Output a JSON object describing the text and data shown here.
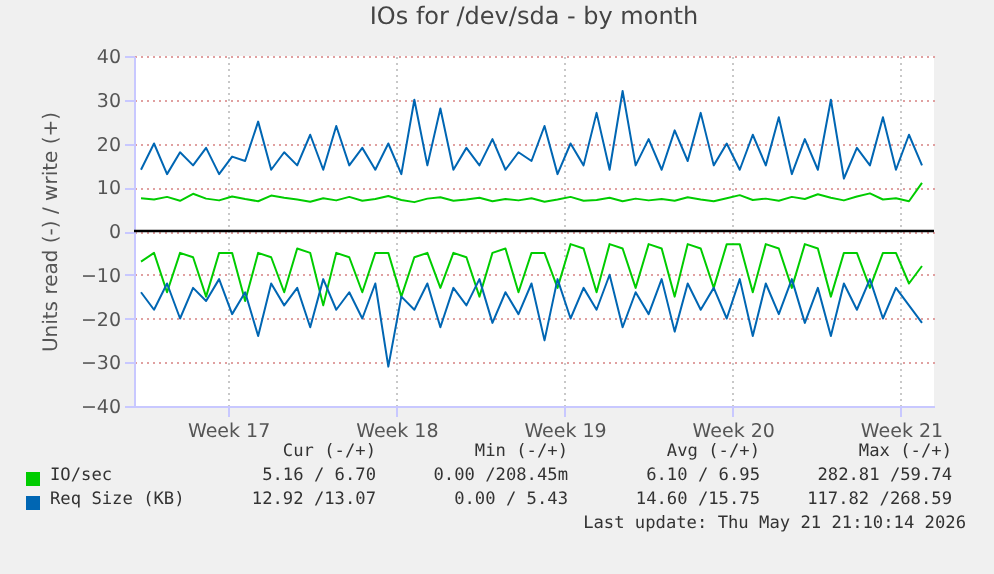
{
  "chart_data": {
    "type": "line",
    "title": "IOs for /dev/sda - by month",
    "ylabel": "Units read (-) / write (+)",
    "x": [
      "2026-04-19T21:00",
      "2026-04-20T10:00",
      "2026-04-20T23:00",
      "2026-04-21T12:00",
      "2026-04-22T01:00",
      "2026-04-22T14:00",
      "2026-04-23T03:00",
      "2026-04-23T16:00",
      "2026-04-24T05:00",
      "2026-04-24T18:00",
      "2026-04-25T07:00",
      "2026-04-25T20:00",
      "2026-04-26T09:00",
      "2026-04-26T22:00",
      "2026-04-27T11:00",
      "2026-04-28T00:00",
      "2026-04-28T13:00",
      "2026-04-29T02:00",
      "2026-04-29T15:00",
      "2026-04-30T04:00",
      "2026-04-30T17:00",
      "2026-05-01T06:00",
      "2026-05-01T19:00",
      "2026-05-02T08:00",
      "2026-05-02T21:00",
      "2026-05-03T10:00",
      "2026-05-03T23:00",
      "2026-05-04T12:00",
      "2026-05-05T01:00",
      "2026-05-05T14:00",
      "2026-05-06T03:00",
      "2026-05-06T16:00",
      "2026-05-07T05:00",
      "2026-05-07T18:00",
      "2026-05-08T07:00",
      "2026-05-08T20:00",
      "2026-05-09T09:00",
      "2026-05-09T22:00",
      "2026-05-10T11:00",
      "2026-05-11T00:00",
      "2026-05-11T13:00",
      "2026-05-12T02:00",
      "2026-05-12T15:00",
      "2026-05-13T04:00",
      "2026-05-13T17:00",
      "2026-05-14T06:00",
      "2026-05-14T19:00",
      "2026-05-15T08:00",
      "2026-05-15T21:00",
      "2026-05-16T10:00",
      "2026-05-16T23:00",
      "2026-05-17T12:00",
      "2026-05-18T01:00",
      "2026-05-18T14:00",
      "2026-05-19T03:00",
      "2026-05-19T16:00",
      "2026-05-20T05:00",
      "2026-05-20T18:00",
      "2026-05-21T07:00",
      "2026-05-21T20:00",
      "2026-05-22T09:00"
    ],
    "series": [
      {
        "name": "IO/sec",
        "color": "#00cc00",
        "values": [
          7.5,
          7.2,
          7.8,
          6.9,
          8.5,
          7.4,
          7.0,
          7.9,
          7.3,
          6.8,
          8.1,
          7.6,
          7.2,
          6.7,
          7.5,
          7.0,
          7.8,
          6.9,
          7.3,
          8.0,
          7.1,
          6.6,
          7.4,
          7.7,
          6.9,
          7.2,
          7.6,
          6.8,
          7.3,
          7.0,
          7.5,
          6.7,
          7.2,
          7.8,
          6.9,
          7.1,
          7.6,
          6.8,
          7.4,
          7.0,
          7.3,
          6.9,
          7.7,
          7.2,
          6.8,
          7.5,
          8.2,
          7.1,
          7.4,
          6.9,
          7.8,
          7.3,
          8.4,
          7.6,
          7.0,
          7.9,
          8.6,
          7.2,
          7.5,
          6.8,
          11.0
        ]
      },
      {
        "name": "Req Size (KB)",
        "color": "#0066b3",
        "values": [
          14,
          20,
          13,
          18,
          15,
          19,
          13,
          17,
          16,
          25,
          14,
          18,
          15,
          22,
          14,
          24,
          15,
          19,
          14,
          20,
          13,
          30,
          15,
          28,
          14,
          19,
          15,
          21,
          14,
          18,
          16,
          24,
          13,
          20,
          15,
          27,
          14,
          32,
          15,
          21,
          14,
          23,
          16,
          27,
          15,
          20,
          14,
          22,
          15,
          26,
          13,
          21,
          14,
          30,
          12,
          19,
          15,
          26,
          14,
          22,
          15
        ]
      },
      {
        "color": "#00cc00",
        "values": [
          -7,
          -5,
          -14,
          -5,
          -6,
          -15,
          -5,
          -5,
          -16,
          -5,
          -6,
          -14,
          -4,
          -5,
          -17,
          -5,
          -6,
          -14,
          -5,
          -5,
          -15,
          -6,
          -5,
          -13,
          -5,
          -6,
          -15,
          -5,
          -4,
          -14,
          -5,
          -5,
          -13,
          -3,
          -4,
          -14,
          -3,
          -4,
          -13,
          -3,
          -4,
          -15,
          -3,
          -4,
          -13,
          -3,
          -3,
          -14,
          -3,
          -4,
          -13,
          -3,
          -4,
          -15,
          -5,
          -5,
          -13,
          -5,
          -5,
          -12,
          -8
        ]
      },
      {
        "color": "#0066b3",
        "values": [
          -14,
          -18,
          -12,
          -20,
          -13,
          -16,
          -11,
          -19,
          -14,
          -24,
          -12,
          -17,
          -13,
          -22,
          -11,
          -18,
          -14,
          -20,
          -12,
          -31,
          -15,
          -18,
          -12,
          -22,
          -13,
          -17,
          -11,
          -21,
          -14,
          -19,
          -12,
          -25,
          -11,
          -20,
          -13,
          -18,
          -10,
          -22,
          -14,
          -19,
          -11,
          -23,
          -12,
          -18,
          -13,
          -20,
          -11,
          -24,
          -12,
          -19,
          -11,
          -21,
          -13,
          -24,
          -12,
          -18,
          -11,
          -20,
          -13,
          -17,
          -21
        ]
      }
    ],
    "xlim": [
      "2026-04-19T14:00",
      "2026-05-22T21:00"
    ],
    "xticks": [
      {
        "value": "2026-04-23T12:00",
        "label": "Week 17"
      },
      {
        "value": "2026-04-30T12:00",
        "label": "Week 18"
      },
      {
        "value": "2026-05-07T12:00",
        "label": "Week 19"
      },
      {
        "value": "2026-05-14T12:00",
        "label": "Week 20"
      },
      {
        "value": "2026-05-21T12:00",
        "label": "Week 21"
      }
    ],
    "ylim": [
      -40,
      40
    ],
    "yticks": [
      -40,
      -30,
      -20,
      -10,
      0,
      10,
      20,
      30,
      40
    ],
    "grid": true,
    "legend": "bottom",
    "marker": "none",
    "line_style": "solid",
    "ref_lines": [
      {
        "axis": "y",
        "value": 0,
        "color": "#000000"
      }
    ],
    "annotations": [
      "Cur (-/+)",
      "Min (-/+)",
      "Avg (-/+)",
      "Max (-/+)",
      "5.16 / 6.70",
      "0.00 /208.45m",
      "6.10 / 6.95",
      "282.81 /59.74",
      "12.92 /13.07",
      "0.00 / 5.43",
      "14.60 /15.75",
      "117.82 /268.59",
      "Last update: Thu May 21 21:10:14 2026"
    ]
  }
}
